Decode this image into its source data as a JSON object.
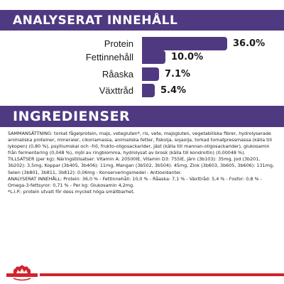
{
  "headings": {
    "analysis": "ANALYSERAT INNEHÅLL",
    "ingredients": "INGREDIENSER"
  },
  "nutrients": [
    {
      "label": "Protein",
      "value": "36.0%",
      "fraction": 36.0
    },
    {
      "label": "Fettinnehåll",
      "value": "10.0%",
      "fraction": 10.0
    },
    {
      "label": "Råaska",
      "value": "7.1%",
      "fraction": 7.1
    },
    {
      "label": "Växttråd",
      "value": "5.4%",
      "fraction": 5.4
    }
  ],
  "ingredients": {
    "composition": "SAMMANSÄTTNING: torkat fågelprotein, majs, vetegluten*, ris, vete, majsgluten, vegetabiliska fibrer, hydrolyserade animaliska proteiner, mineraler, cikoriamassa, animaliska fetter, fiskolja, sojaolja, torkad tomatpressmassa (källa till lykopen) (0,80 %), psylliumskal och -frö, frukto-oligosackarider, jäst (källa till mannan-oligosackarider), glukosamin från fermentering (0,048 %), mjöl av ringblomma, hydrolysat av brosk (källa till kondroitin) (0,00048 %).",
    "additives": "TILLSATSER (per kg): Näringstillsatser: Vitamin A: 20500IE, Vitamin D3: 755IE, Järn (3b103): 35mg, Jod (3b201, 3b202): 3,5mg, Koppar (3b405, 3b406): 11mg, Mangan (3b502, 3b504): 45mg, Zink (3b603, 3b605, 3b606): 131mg, Selen (3b801, 3b811, 3b812): 0,06mg - Konserveringsmedel - Antioxidanter.",
    "analysis": "ANALYSERAT INNEHÅLL: Protein: 36,0 % - Fettinnehåll: 10,0 % - Råaska: 7,1 % - Växttråd: 5,4 % - Fosfor: 0,8 % - Omega-3-fettsyror: 0,71 % - Per kg: Glukosamin 4,2mg.",
    "footnote": "*L.I.P.: protein utvalt för dess mycket höga smältbarhet."
  },
  "colors": {
    "brand_purple": "#4f3a82",
    "brand_red": "#d2232a"
  },
  "icons": {
    "logo": "crown-logo-icon"
  }
}
